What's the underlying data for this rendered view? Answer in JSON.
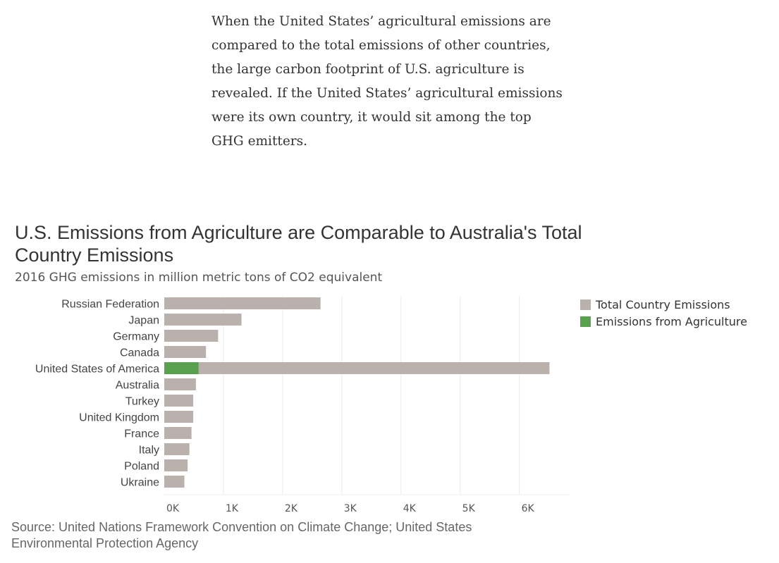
{
  "article": {
    "paragraph": "When the United States’ agricultural emissions are compared to the total emissions of other countries, the large carbon footprint of U.S. agriculture is revealed.  If the United States’ agricultural emissions were its own country, it would sit among the top GHG emitters."
  },
  "colors": {
    "total": "#bab0ac",
    "agriculture": "#59a14f",
    "grid": "#ececec",
    "label": "#444444",
    "tick": "#555555"
  },
  "chart_data": {
    "type": "bar",
    "orientation": "horizontal",
    "title": "U.S. Emissions from Agriculture are Comparable to Australia's Total Country Emissions",
    "subtitle": "2016 GHG emissions in million metric tons of CO2 equivalent",
    "source": "Source: United Nations Framework Convention on Climate Change; United States Environmental Protection Agency",
    "categories": [
      "Russian Federation",
      "Japan",
      "Germany",
      "Canada",
      "United States of America",
      "Australia",
      "Turkey",
      "United Kingdom",
      "France",
      "Italy",
      "Poland",
      "Ukraine"
    ],
    "series": [
      {
        "name": "Total Country Emissions",
        "values": [
          2640,
          1305,
          910,
          705,
          6510,
          535,
          490,
          490,
          460,
          425,
          395,
          340
        ]
      },
      {
        "name": "Emissions from Agriculture",
        "values": [
          null,
          null,
          null,
          null,
          580,
          null,
          null,
          null,
          null,
          null,
          null,
          null
        ]
      }
    ],
    "xlim": [
      0,
      6850
    ],
    "xticks": [
      0,
      1000,
      2000,
      3000,
      4000,
      5000,
      6000
    ],
    "xtick_labels": [
      "0K",
      "1K",
      "2K",
      "3K",
      "4K",
      "5K",
      "6K"
    ],
    "grid": true,
    "legend_position": "top-right"
  }
}
